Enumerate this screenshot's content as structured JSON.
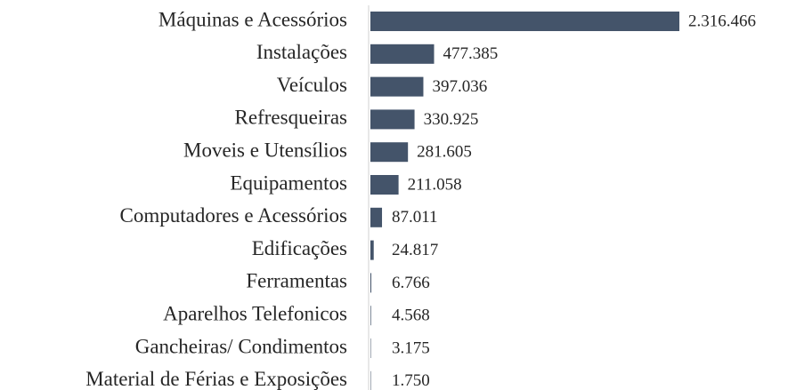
{
  "chart_data": {
    "type": "bar",
    "orientation": "horizontal",
    "color": "#44546a",
    "categories": [
      "Máquinas e Acessórios",
      "Instalações",
      "Veículos",
      "Refresqueiras",
      "Moveis e Utensílios",
      "Equipamentos",
      "Computadores e Acessórios",
      "Edificações",
      "Ferramentas",
      "Aparelhos Telefonicos",
      "Gancheiras/ Condimentos",
      "Material de Férias e Exposições"
    ],
    "values": [
      2316466,
      477385,
      397036,
      330925,
      281605,
      211058,
      87011,
      24817,
      6766,
      4568,
      3175,
      1750
    ],
    "value_labels": [
      "2.316.466",
      "477.385",
      "397.036",
      "330.925",
      "281.605",
      "211.058",
      "87.011",
      "24.817",
      "6.766",
      "4.568",
      "3.175",
      "1.750"
    ]
  }
}
